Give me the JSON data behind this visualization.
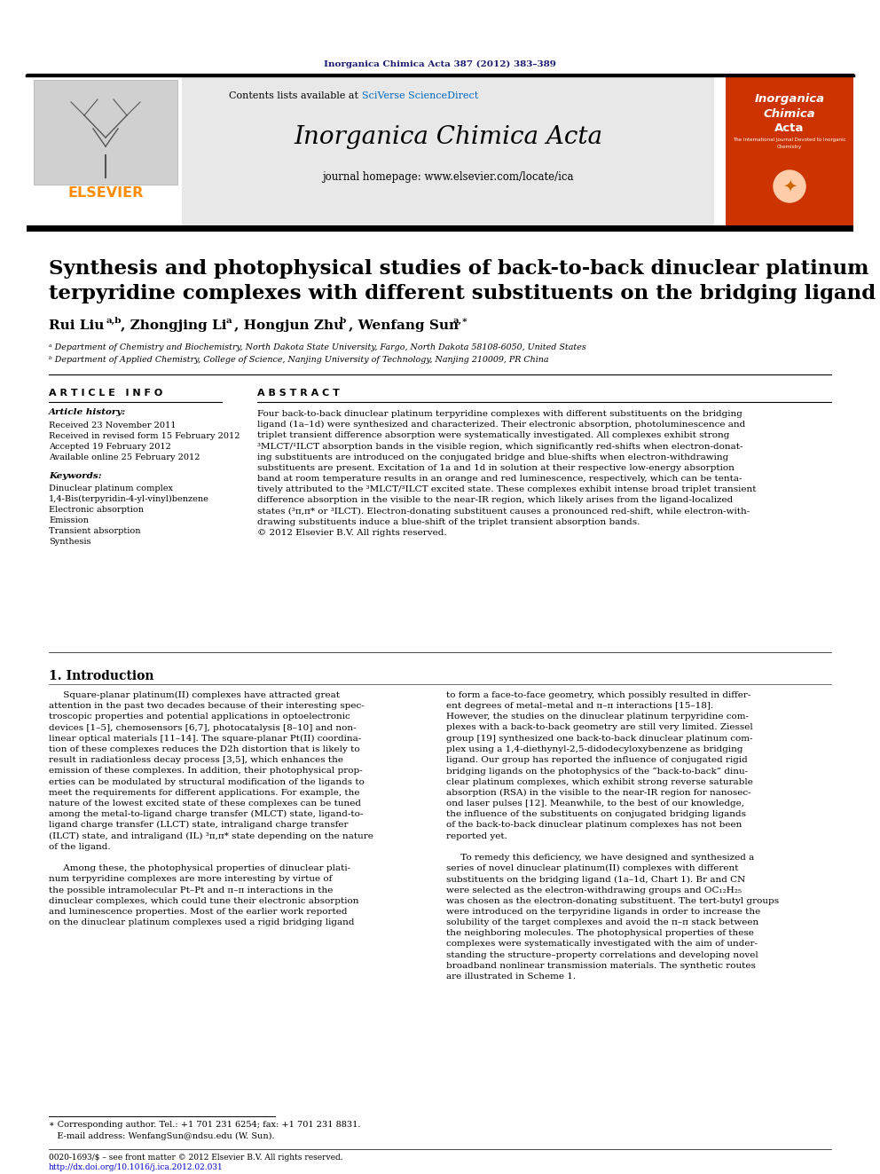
{
  "journal_ref": "Inorganica Chimica Acta 387 (2012) 383–389",
  "journal_name": "Inorganica Chimica Acta",
  "journal_homepage": "journal homepage: www.elsevier.com/locate/ica",
  "contents_available": "Contents lists available at ",
  "sciverse": "SciVerse ScienceDirect",
  "elsevier_color": "#FF8C00",
  "header_bg": "#e8e8e8",
  "title": "Synthesis and photophysical studies of back-to-back dinuclear platinum\nterpyridine complexes with different substituents on the bridging ligand",
  "affil_a": "ᵃ Department of Chemistry and Biochemistry, North Dakota State University, Fargo, North Dakota 58108-6050, United States",
  "affil_b": "ᵇ Department of Applied Chemistry, College of Science, Nanjing University of Technology, Nanjing 210009, PR China",
  "article_info_title": "A R T I C L E   I N F O",
  "article_history_title": "Article history:",
  "received1": "Received 23 November 2011",
  "received2": "Received in revised form 15 February 2012",
  "accepted": "Accepted 19 February 2012",
  "online": "Available online 25 February 2012",
  "keywords_title": "Keywords:",
  "keyword1": "Dinuclear platinum complex",
  "keyword2": "1,4-Bis(terpyridin-4-yl-vinyl)benzene",
  "keyword3": "Electronic absorption",
  "keyword4": "Emission",
  "keyword5": "Transient absorption",
  "keyword6": "Synthesis",
  "abstract_title": "A B S T R A C T",
  "abstract_text": "Four back-to-back dinuclear platinum terpyridine complexes with different substituents on the bridging\nligand (1a–1d) were synthesized and characterized. Their electronic absorption, photoluminescence and\ntriplet transient difference absorption were systematically investigated. All complexes exhibit strong\n³MLCT/¹ILCT absorption bands in the visible region, which significantly red-shifts when electron-donat-\ning substituents are introduced on the conjugated bridge and blue-shifts when electron-withdrawing\nsubstituents are present. Excitation of 1a and 1d in solution at their respective low-energy absorption\nband at room temperature results in an orange and red luminescence, respectively, which can be tenta-\ntively attributed to the ³MLCT/³ILCT excited state. These complexes exhibit intense broad triplet transient\ndifference absorption in the visible to the near-IR region, which likely arises from the ligand-localized\nstates (³π,π* or ³ILCT). Electron-donating substituent causes a pronounced red-shift, while electron-with-\ndrawing substituents induce a blue-shift of the triplet transient absorption bands.\n© 2012 Elsevier B.V. All rights reserved.",
  "intro_title": "1. Introduction",
  "intro_col1": "     Square-planar platinum(II) complexes have attracted great\nattention in the past two decades because of their interesting spec-\ntroscopic properties and potential applications in optoelectronic\ndevices [1–5], chemosensors [6,7], photocatalysis [8–10] and non-\nlinear optical materials [11–14]. The square-planar Pt(II) coordina-\ntion of these complexes reduces the D2h distortion that is likely to\nresult in radiationless decay process [3,5], which enhances the\nemission of these complexes. In addition, their photophysical prop-\nerties can be modulated by structural modification of the ligands to\nmeet the requirements for different applications. For example, the\nnature of the lowest excited state of these complexes can be tuned\namong the metal-to-ligand charge transfer (MLCT) state, ligand-to-\nligand charge transfer (LLCT) state, intraligand charge transfer\n(ILCT) state, and intraligand (IL) ³π,π* state depending on the nature\nof the ligand.\n\n     Among these, the photophysical properties of dinuclear plati-\nnum terpyridine complexes are more interesting by virtue of\nthe possible intramolecular Pt–Pt and π–π interactions in the\ndinuclear complexes, which could tune their electronic absorption\nand luminescence properties. Most of the earlier work reported\non the dinuclear platinum complexes used a rigid bridging ligand",
  "intro_col2": "to form a face-to-face geometry, which possibly resulted in differ-\nent degrees of metal–metal and π–π interactions [15–18].\nHowever, the studies on the dinuclear platinum terpyridine com-\nplexes with a back-to-back geometry are still very limited. Ziessel\ngroup [19] synthesized one back-to-back dinuclear platinum com-\nplex using a 1,4-diethynyl-2,5-didodecyloxybenzene as bridging\nligand. Our group has reported the influence of conjugated rigid\nbridging ligands on the photophysics of the “back-to-back” dinu-\nclear platinum complexes, which exhibit strong reverse saturable\nabsorption (RSA) in the visible to the near-IR region for nanosec-\nond laser pulses [12]. Meanwhile, to the best of our knowledge,\nthe influence of the substituents on conjugated bridging ligands\nof the back-to-back dinuclear platinum complexes has not been\nreported yet.\n\n     To remedy this deficiency, we have designed and synthesized a\nseries of novel dinuclear platinum(II) complexes with different\nsubstituents on the bridging ligand (1a–1d, Chart 1). Br and CN\nwere selected as the electron-withdrawing groups and OC₁₂H₂₅\nwas chosen as the electron-donating substituent. The tert-butyl groups\nwere introduced on the terpyridine ligands in order to increase the\nsolubility of the target complexes and avoid the π–π stack between\nthe neighboring molecules. The photophysical properties of these\ncomplexes were systematically investigated with the aim of under-\nstanding the structure–property correlations and developing novel\nbroadband nonlinear transmission materials. The synthetic routes\nare illustrated in Scheme 1.",
  "footnote_star": "∗ Corresponding author. Tel.: +1 701 231 6254; fax: +1 701 231 8831.",
  "footnote_email": "   E-mail address: WenfangSun@ndsu.edu (W. Sun).",
  "footer_issn": "0020-1693/$ – see front matter © 2012 Elsevier B.V. All rights reserved.",
  "footer_doi": "http://dx.doi.org/10.1016/j.ica.2012.02.031",
  "dark_navy": "#1a1a6e",
  "link_blue": "#0000CC",
  "orange_color": "#FF8C00",
  "cover_red": "#cc3300"
}
